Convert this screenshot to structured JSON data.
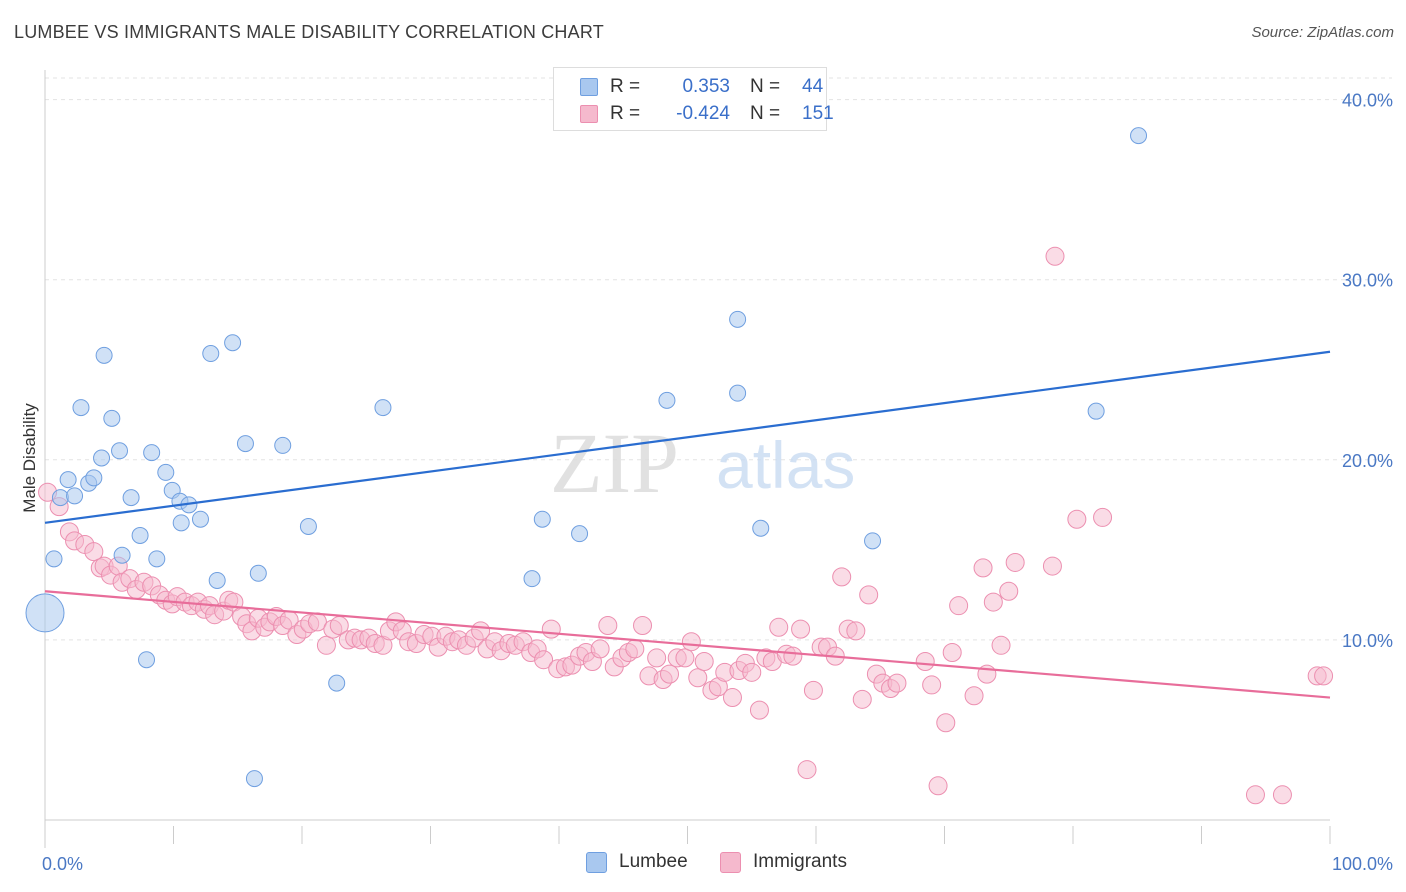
{
  "header": {
    "title": "LUMBEE VS IMMIGRANTS MALE DISABILITY CORRELATION CHART",
    "source": "Source: ZipAtlas.com"
  },
  "legend": {
    "r_label": "R =",
    "n_label": "N =",
    "rows": [
      {
        "r": "0.353",
        "n": "44"
      },
      {
        "r": "-0.424",
        "n": "151"
      }
    ]
  },
  "watermark": {
    "zip": "ZIP",
    "atlas": "atlas"
  },
  "colors": {
    "lumbee_fill": "#a9c8ef",
    "lumbee_stroke": "#6f9fe0",
    "lumbee_line": "#2a6dd0",
    "immigrants_fill": "#f5b9cd",
    "immigrants_stroke": "#ec8fb0",
    "immigrants_line": "#e86d9a",
    "tick_text": "#4a78c4"
  },
  "chart_data": {
    "type": "scatter",
    "title": "LUMBEE VS IMMIGRANTS MALE DISABILITY CORRELATION CHART",
    "xlabel": "",
    "ylabel": "Male Disability",
    "xlim": [
      0,
      100
    ],
    "ylim": [
      0,
      41.2
    ],
    "x_tick_labels": [
      "0.0%",
      "100.0%"
    ],
    "y_ticks": [
      10,
      20,
      30,
      40
    ],
    "y_tick_labels": [
      "10.0%",
      "20.0%",
      "30.0%",
      "40.0%"
    ],
    "grid": true,
    "legend_position": "top-center",
    "series": [
      {
        "name": "Lumbee",
        "r": 0.353,
        "n": 44,
        "trend": {
          "x": [
            0,
            100
          ],
          "y": [
            16.5,
            26.0
          ]
        },
        "points": [
          [
            0.0,
            11.5
          ],
          [
            0.7,
            14.5
          ],
          [
            1.2,
            17.9
          ],
          [
            1.8,
            18.9
          ],
          [
            2.3,
            18.0
          ],
          [
            2.8,
            22.9
          ],
          [
            3.4,
            18.7
          ],
          [
            3.8,
            19.0
          ],
          [
            4.4,
            20.1
          ],
          [
            4.6,
            25.8
          ],
          [
            5.2,
            22.3
          ],
          [
            5.8,
            20.5
          ],
          [
            6.0,
            14.7
          ],
          [
            6.7,
            17.9
          ],
          [
            7.4,
            15.8
          ],
          [
            7.9,
            8.9
          ],
          [
            8.3,
            20.4
          ],
          [
            8.7,
            14.5
          ],
          [
            9.4,
            19.3
          ],
          [
            9.9,
            18.3
          ],
          [
            10.5,
            17.7
          ],
          [
            10.6,
            16.5
          ],
          [
            11.2,
            17.5
          ],
          [
            12.1,
            16.7
          ],
          [
            12.9,
            25.9
          ],
          [
            13.4,
            13.3
          ],
          [
            14.6,
            26.5
          ],
          [
            15.6,
            20.9
          ],
          [
            16.3,
            2.3
          ],
          [
            16.6,
            13.7
          ],
          [
            18.5,
            20.8
          ],
          [
            20.5,
            16.3
          ],
          [
            22.7,
            7.6
          ],
          [
            26.3,
            22.9
          ],
          [
            37.9,
            13.4
          ],
          [
            38.7,
            16.7
          ],
          [
            41.6,
            15.9
          ],
          [
            48.4,
            23.3
          ],
          [
            53.9,
            27.8
          ],
          [
            53.9,
            23.7
          ],
          [
            55.7,
            16.2
          ],
          [
            64.4,
            15.5
          ],
          [
            81.8,
            22.7
          ],
          [
            85.1,
            38.0
          ]
        ]
      },
      {
        "name": "Immigrants",
        "r": -0.424,
        "n": 151,
        "trend": {
          "x": [
            0,
            100
          ],
          "y": [
            12.7,
            6.8
          ]
        },
        "points": [
          [
            0.2,
            18.2
          ],
          [
            1.1,
            17.4
          ],
          [
            1.9,
            16.0
          ],
          [
            2.3,
            15.5
          ],
          [
            3.1,
            15.3
          ],
          [
            3.8,
            14.9
          ],
          [
            4.3,
            14.0
          ],
          [
            4.6,
            14.1
          ],
          [
            5.1,
            13.6
          ],
          [
            5.7,
            14.1
          ],
          [
            6.0,
            13.2
          ],
          [
            6.6,
            13.4
          ],
          [
            7.1,
            12.8
          ],
          [
            7.7,
            13.2
          ],
          [
            8.3,
            13.0
          ],
          [
            8.9,
            12.5
          ],
          [
            9.4,
            12.2
          ],
          [
            9.9,
            12.0
          ],
          [
            10.3,
            12.4
          ],
          [
            10.9,
            12.1
          ],
          [
            11.4,
            11.9
          ],
          [
            11.9,
            12.1
          ],
          [
            12.4,
            11.7
          ],
          [
            12.8,
            11.9
          ],
          [
            13.2,
            11.4
          ],
          [
            13.9,
            11.6
          ],
          [
            14.3,
            12.2
          ],
          [
            14.7,
            12.1
          ],
          [
            15.3,
            11.3
          ],
          [
            15.7,
            10.9
          ],
          [
            16.1,
            10.5
          ],
          [
            16.6,
            11.2
          ],
          [
            17.1,
            10.7
          ],
          [
            17.5,
            11.0
          ],
          [
            18.0,
            11.3
          ],
          [
            18.5,
            10.8
          ],
          [
            19.0,
            11.1
          ],
          [
            19.6,
            10.3
          ],
          [
            20.1,
            10.6
          ],
          [
            20.6,
            10.9
          ],
          [
            21.2,
            11.0
          ],
          [
            21.9,
            9.7
          ],
          [
            22.4,
            10.6
          ],
          [
            22.9,
            10.8
          ],
          [
            23.6,
            10.0
          ],
          [
            24.1,
            10.1
          ],
          [
            24.6,
            10.0
          ],
          [
            25.2,
            10.1
          ],
          [
            25.7,
            9.8
          ],
          [
            26.3,
            9.7
          ],
          [
            26.8,
            10.5
          ],
          [
            27.3,
            11.0
          ],
          [
            27.8,
            10.5
          ],
          [
            28.3,
            9.9
          ],
          [
            28.9,
            9.8
          ],
          [
            29.5,
            10.3
          ],
          [
            30.1,
            10.2
          ],
          [
            30.6,
            9.6
          ],
          [
            31.2,
            10.2
          ],
          [
            31.7,
            9.9
          ],
          [
            32.2,
            10.0
          ],
          [
            32.8,
            9.7
          ],
          [
            33.4,
            10.1
          ],
          [
            33.9,
            10.5
          ],
          [
            34.4,
            9.5
          ],
          [
            35.0,
            9.9
          ],
          [
            35.5,
            9.4
          ],
          [
            36.1,
            9.8
          ],
          [
            36.6,
            9.7
          ],
          [
            37.2,
            9.9
          ],
          [
            37.8,
            9.3
          ],
          [
            38.3,
            9.5
          ],
          [
            38.8,
            8.9
          ],
          [
            39.4,
            10.6
          ],
          [
            39.9,
            8.4
          ],
          [
            40.5,
            8.5
          ],
          [
            41.0,
            8.6
          ],
          [
            41.6,
            9.1
          ],
          [
            42.1,
            9.3
          ],
          [
            42.6,
            8.8
          ],
          [
            43.2,
            9.5
          ],
          [
            43.8,
            10.8
          ],
          [
            44.3,
            8.5
          ],
          [
            44.9,
            9.0
          ],
          [
            45.4,
            9.3
          ],
          [
            45.9,
            9.5
          ],
          [
            46.5,
            10.8
          ],
          [
            47.0,
            8.0
          ],
          [
            47.6,
            9.0
          ],
          [
            48.1,
            7.8
          ],
          [
            48.6,
            8.1
          ],
          [
            49.2,
            9.0
          ],
          [
            49.8,
            9.0
          ],
          [
            50.3,
            9.9
          ],
          [
            50.8,
            7.9
          ],
          [
            51.3,
            8.8
          ],
          [
            51.9,
            7.2
          ],
          [
            52.4,
            7.4
          ],
          [
            52.9,
            8.2
          ],
          [
            53.5,
            6.8
          ],
          [
            54.0,
            8.3
          ],
          [
            54.5,
            8.7
          ],
          [
            55.0,
            8.2
          ],
          [
            55.6,
            6.1
          ],
          [
            56.1,
            9.0
          ],
          [
            56.6,
            8.8
          ],
          [
            57.1,
            10.7
          ],
          [
            57.7,
            9.2
          ],
          [
            58.2,
            9.1
          ],
          [
            58.8,
            10.6
          ],
          [
            59.3,
            2.8
          ],
          [
            59.8,
            7.2
          ],
          [
            60.4,
            9.6
          ],
          [
            60.9,
            9.6
          ],
          [
            61.5,
            9.1
          ],
          [
            62.0,
            13.5
          ],
          [
            62.5,
            10.6
          ],
          [
            63.1,
            10.5
          ],
          [
            63.6,
            6.7
          ],
          [
            64.1,
            12.5
          ],
          [
            64.7,
            8.1
          ],
          [
            65.2,
            7.6
          ],
          [
            65.8,
            7.3
          ],
          [
            66.3,
            7.6
          ],
          [
            68.5,
            8.8
          ],
          [
            69.0,
            7.5
          ],
          [
            69.5,
            1.9
          ],
          [
            70.1,
            5.4
          ],
          [
            70.6,
            9.3
          ],
          [
            71.1,
            11.9
          ],
          [
            72.3,
            6.9
          ],
          [
            73.0,
            14.0
          ],
          [
            73.3,
            8.1
          ],
          [
            73.8,
            12.1
          ],
          [
            74.4,
            9.7
          ],
          [
            75.0,
            12.7
          ],
          [
            75.5,
            14.3
          ],
          [
            78.4,
            14.1
          ],
          [
            78.6,
            31.3
          ],
          [
            80.3,
            16.7
          ],
          [
            82.3,
            16.8
          ],
          [
            94.2,
            1.4
          ],
          [
            96.3,
            1.4
          ],
          [
            99.0,
            8.0
          ],
          [
            99.5,
            8.0
          ]
        ]
      }
    ]
  },
  "bottom_legend": {
    "items": [
      {
        "label": "Lumbee"
      },
      {
        "label": "Immigrants"
      }
    ]
  }
}
